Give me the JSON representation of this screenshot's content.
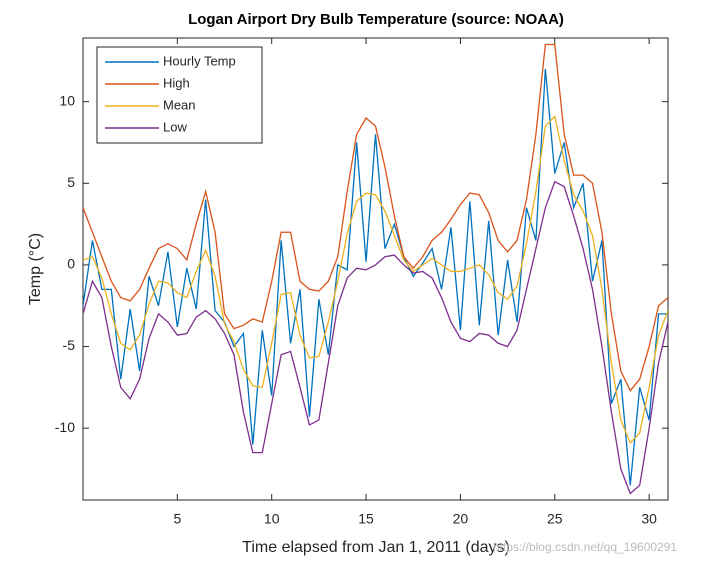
{
  "chart_data": {
    "type": "line",
    "title": "Logan Airport Dry Bulb Temperature (source: NOAA)",
    "xlabel": "Time elapsed from Jan 1, 2011 (days)",
    "ylabel": "Temp (°C)",
    "watermark": "https://blog.csdn.net/qq_19600291",
    "x": [
      0,
      0.5,
      1,
      1.5,
      2,
      2.5,
      3,
      3.5,
      4,
      4.5,
      5,
      5.5,
      6,
      6.5,
      7,
      7.5,
      8,
      8.5,
      9,
      9.5,
      10,
      10.5,
      11,
      11.5,
      12,
      12.5,
      13,
      13.5,
      14,
      14.5,
      15,
      15.5,
      16,
      16.5,
      17,
      17.5,
      18,
      18.5,
      19,
      19.5,
      20,
      20.5,
      21,
      21.5,
      22,
      22.5,
      23,
      23.5,
      24,
      24.5,
      25,
      25.5,
      26,
      26.5,
      27,
      27.5,
      28,
      28.5,
      29,
      29.5,
      30,
      30.5,
      31
    ],
    "series": [
      {
        "name": "Hourly Temp",
        "color": "#0072BD",
        "values": [
          -2.5,
          1.5,
          -1.5,
          -1.5,
          -7,
          -2.7,
          -6.5,
          -0.7,
          -2.5,
          0.8,
          -3.8,
          -0.2,
          -2.7,
          4,
          -2.8,
          -3.5,
          -5,
          -4.2,
          -11,
          -4,
          -8,
          1.5,
          -4.8,
          -1.5,
          -9.3,
          -2.1,
          -5.5,
          0,
          -0.3,
          7.5,
          0.2,
          8,
          1,
          2.5,
          0.5,
          -0.7,
          0.1,
          1,
          -1.5,
          2.3,
          -4,
          3.9,
          -3.7,
          2.7,
          -4.3,
          0.3,
          -3.5,
          3.5,
          1.5,
          12,
          5.6,
          7.5,
          3.5,
          5,
          -1,
          1.5,
          -8.5,
          -7,
          -13.5,
          -7.5,
          -9.5,
          -3,
          -3
        ]
      },
      {
        "name": "High",
        "color": "#D95319",
        "values": [
          3.5,
          2.0,
          0.5,
          -1.0,
          -2.0,
          -2.2,
          -1.5,
          -0.2,
          1.0,
          1.3,
          1.0,
          0.3,
          2.5,
          4.5,
          2.0,
          -3.0,
          -3.9,
          -3.7,
          -3.3,
          -3.5,
          -1.0,
          2.0,
          2.0,
          -1.0,
          -1.5,
          -1.6,
          -1.0,
          0.5,
          4.5,
          8.0,
          9.0,
          8.5,
          6.0,
          3.0,
          0.5,
          -0.2,
          0.5,
          1.5,
          2.0,
          2.8,
          3.7,
          4.4,
          4.3,
          3.2,
          1.5,
          0.8,
          1.5,
          4.0,
          8.0,
          13.5,
          13.5,
          8.0,
          5.5,
          5.5,
          5.0,
          2.0,
          -3.0,
          -6.5,
          -7.7,
          -7.0,
          -5.0,
          -2.5,
          -2.0
        ]
      },
      {
        "name": "Mean",
        "color": "#EDB120",
        "values": [
          0.3,
          0.5,
          -0.8,
          -3,
          -4.8,
          -5.2,
          -4.3,
          -2.4,
          -1,
          -1.1,
          -1.7,
          -2,
          -0.4,
          0.9,
          -0.7,
          -3.6,
          -4.7,
          -6.4,
          -7.4,
          -7.5,
          -4.8,
          -1.8,
          -1.7,
          -4.3,
          -5.7,
          -5.6,
          -3.5,
          -1,
          1.9,
          3.9,
          4.4,
          4.3,
          3.3,
          1.8,
          0.3,
          -0.4,
          0,
          0.4,
          0,
          -0.4,
          -0.4,
          -0.2,
          0,
          -0.6,
          -1.7,
          -2.1,
          -1.3,
          1.3,
          4.5,
          8.5,
          9.1,
          6.4,
          4.3,
          3.3,
          1.8,
          -1.5,
          -6,
          -9.5,
          -10.9,
          -10.3,
          -7.5,
          -4.3,
          -2.8
        ]
      },
      {
        "name": "Low",
        "color": "#7E2F8E",
        "values": [
          -3,
          -1,
          -2,
          -5,
          -7.5,
          -8.2,
          -7,
          -4.5,
          -3,
          -3.5,
          -4.3,
          -4.2,
          -3.2,
          -2.8,
          -3.3,
          -4.2,
          -5.5,
          -9,
          -11.5,
          -11.5,
          -8.5,
          -5.5,
          -5.3,
          -7.5,
          -9.8,
          -9.5,
          -6,
          -2.5,
          -0.8,
          -0.2,
          -0.3,
          0,
          0.5,
          0.6,
          0,
          -0.5,
          -0.4,
          -0.8,
          -2,
          -3.5,
          -4.5,
          -4.7,
          -4.2,
          -4.3,
          -4.8,
          -5,
          -4,
          -1.5,
          1,
          3.5,
          5.1,
          4.8,
          3,
          1,
          -1.5,
          -5,
          -9,
          -12.5,
          -14,
          -13.5,
          -10,
          -6,
          -3.5
        ]
      }
    ],
    "xlim": [
      0,
      31
    ],
    "xticks": [
      5,
      10,
      15,
      20,
      25,
      30
    ],
    "ylim": [
      -14.4,
      13.9
    ],
    "yticks": [
      -10,
      -5,
      0,
      5,
      10
    ],
    "grid": false,
    "legend": "upper left"
  }
}
